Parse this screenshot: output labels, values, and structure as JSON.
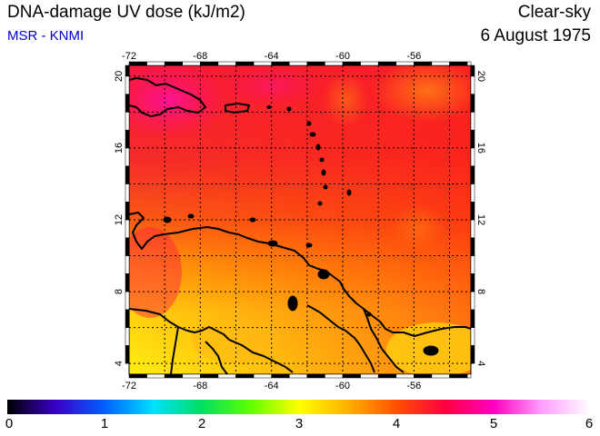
{
  "header": {
    "title": "DNA-damage UV dose (kJ/m2)",
    "source": "MSR - KNMI",
    "condition": "Clear-sky",
    "date": "6 August 1975"
  },
  "map": {
    "lon_ticks": [
      "-72",
      "-68",
      "-64",
      "-60",
      "-56"
    ],
    "lat_ticks": [
      "20",
      "16",
      "12",
      "8",
      "4"
    ]
  },
  "colorbar": {
    "ticks": [
      "0",
      "1",
      "2",
      "3",
      "4",
      "5",
      "6"
    ],
    "colors": [
      "#000000",
      "#3a00c8",
      "#0060ff",
      "#00e0ff",
      "#00e060",
      "#60ff00",
      "#ffff00",
      "#ffb000",
      "#ff5000",
      "#ff0040",
      "#ff00c0",
      "#ffa0ff",
      "#ffffff"
    ]
  }
}
